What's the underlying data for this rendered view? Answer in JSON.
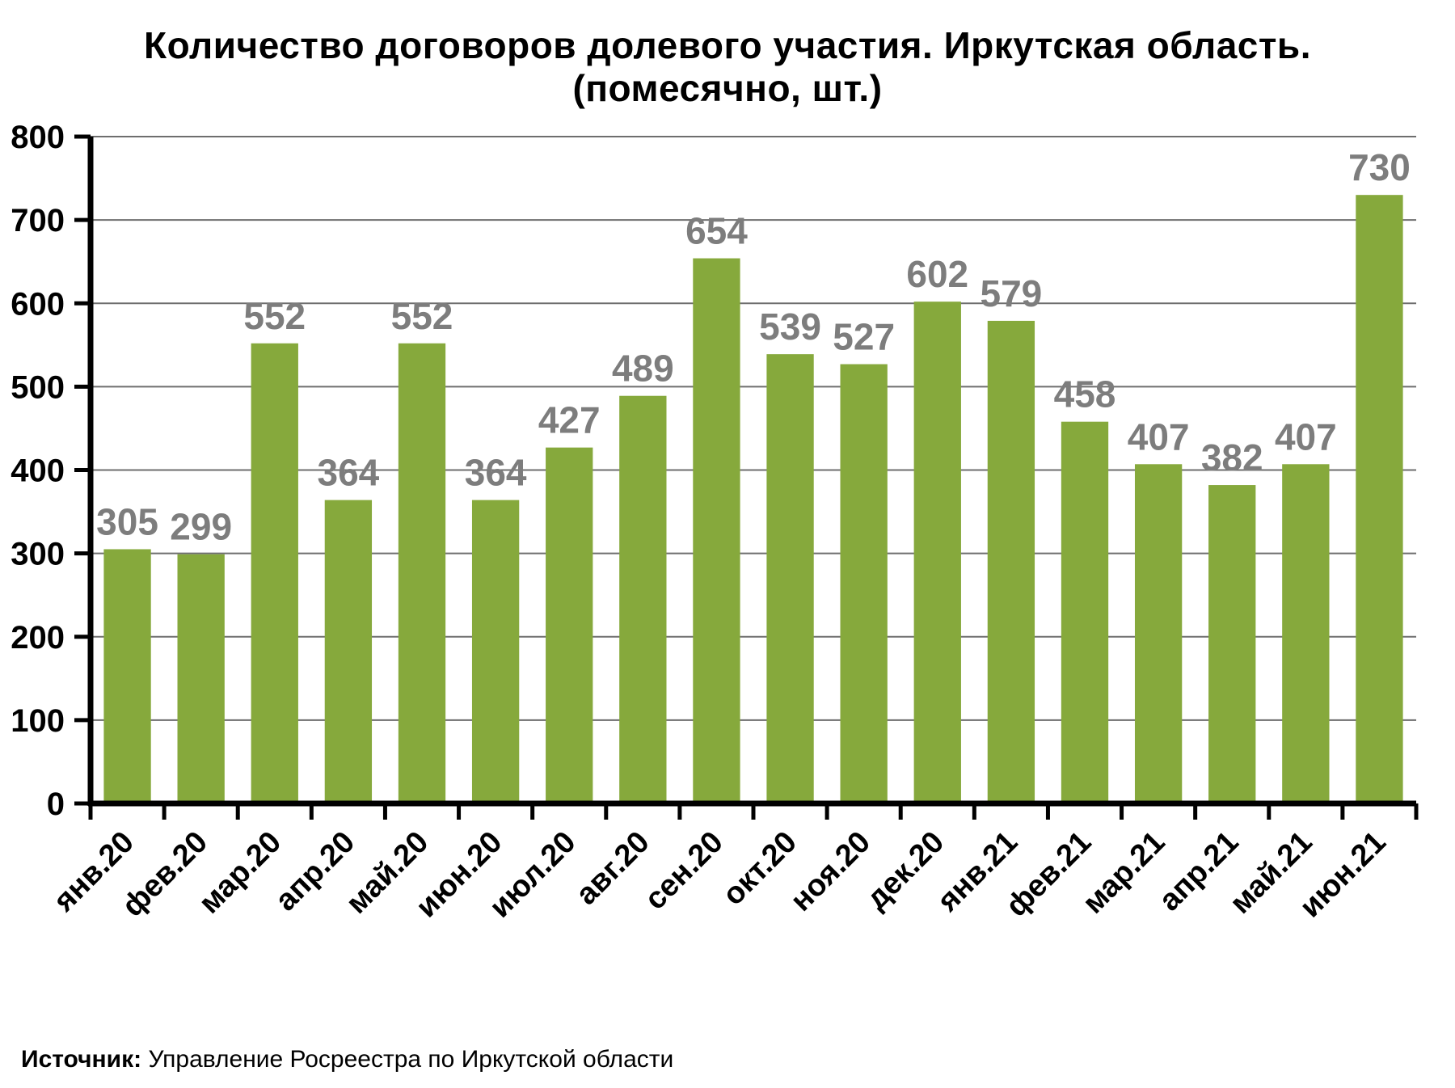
{
  "title": {
    "line1": "Количество договоров долевого участия. Иркутская область.",
    "line2": "(помесячно, шт.)"
  },
  "source": {
    "label": "Источник:",
    "text": " Управление Росреестра по Иркутской области"
  },
  "colors": {
    "bar": "#86A93C",
    "value_label": "#7D7D7D",
    "axis": "#000000",
    "grid": "#6E6E6E"
  },
  "chart_data": {
    "type": "bar",
    "title": "Количество договоров долевого участия. Иркутская область. (помесячно, шт.)",
    "categories": [
      "янв.20",
      "фев.20",
      "мар.20",
      "апр.20",
      "май.20",
      "июн.20",
      "июл.20",
      "авг.20",
      "сен.20",
      "окт.20",
      "ноя.20",
      "дек.20",
      "янв.21",
      "фев.21",
      "мар.21",
      "апр.21",
      "май.21",
      "июн.21"
    ],
    "values": [
      305,
      299,
      552,
      364,
      552,
      364,
      427,
      489,
      654,
      539,
      527,
      602,
      579,
      458,
      407,
      382,
      407,
      730
    ],
    "xlabel": "",
    "ylabel": "",
    "ylim": [
      0,
      800
    ],
    "ytick_step": 100,
    "grid": true,
    "legend": "none",
    "source": "Источник: Управление Росреестра по Иркутской области"
  }
}
